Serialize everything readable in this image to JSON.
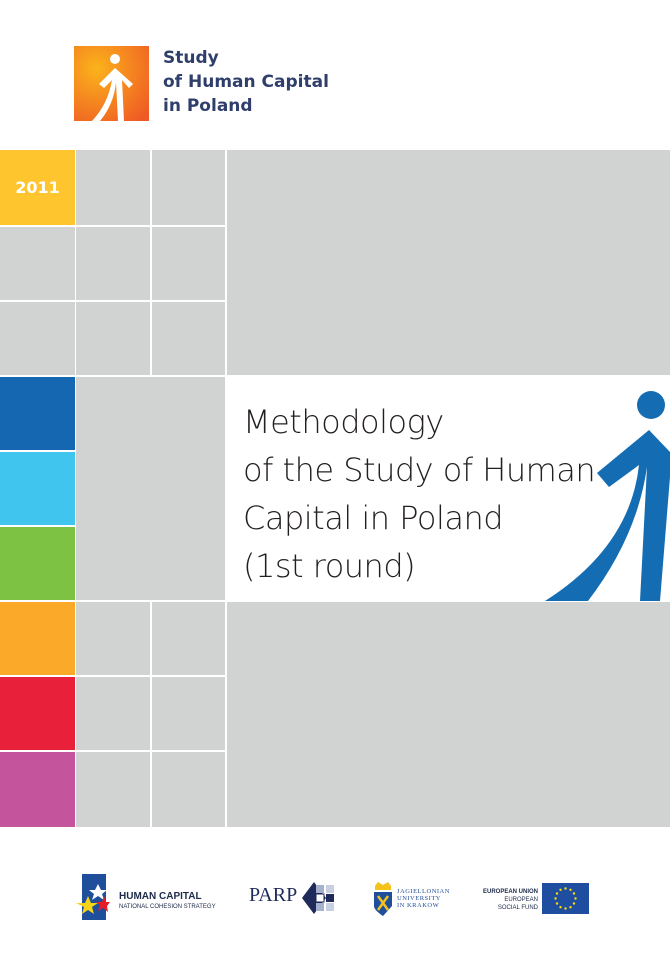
{
  "header": {
    "series_title_lines": [
      "Study",
      "of Human Capital",
      "in Poland"
    ]
  },
  "year": "2011",
  "title_lines": [
    "Methodology",
    "of the Study of Human",
    "Capital in Poland",
    "(1st round)"
  ],
  "colors": {
    "gray": "#d1d2d2",
    "yellow": "#ffc52e",
    "dark_blue": "#1467b0",
    "light_blue": "#3fc5ee",
    "green": "#7dc242",
    "orange": "#fba929",
    "red": "#e8203a",
    "pink": "#c4549c",
    "figure_blue": "#146db3"
  },
  "footer": {
    "human_capital": {
      "name": "HUMAN CAPITAL",
      "sub": "NATIONAL COHESION STRATEGY"
    },
    "parp": "PARP",
    "jagiellonian": [
      "JAGIELLONIAN",
      "UNIVERSITY",
      "IN KRAKOW"
    ],
    "eu": [
      "EUROPEAN UNION",
      "EUROPEAN",
      "SOCIAL FUND"
    ]
  }
}
